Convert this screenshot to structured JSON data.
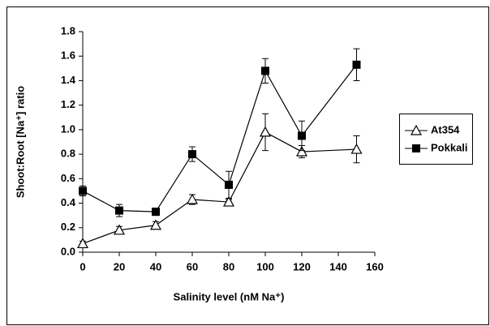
{
  "chart_data": {
    "type": "line",
    "xlabel": "Salinity level (nM Na⁺)",
    "ylabel": "Shoot:Root [Na⁺] ratio",
    "x": [
      0,
      20,
      40,
      60,
      80,
      100,
      120,
      150
    ],
    "series": [
      {
        "name": "At354",
        "color": "#000000",
        "marker": "triangle-open",
        "values": [
          0.07,
          0.18,
          0.22,
          0.43,
          0.41,
          0.98,
          0.82,
          0.84
        ],
        "errors": [
          0.02,
          0.03,
          0.03,
          0.04,
          0.02,
          0.15,
          0.05,
          0.11
        ]
      },
      {
        "name": "Pokkali",
        "color": "#000000",
        "marker": "square",
        "values": [
          0.5,
          0.34,
          0.33,
          0.8,
          0.55,
          1.48,
          0.95,
          1.53
        ],
        "errors": [
          0.04,
          0.05,
          0.03,
          0.06,
          0.11,
          0.1,
          0.12,
          0.13
        ]
      }
    ],
    "xlim": [
      0,
      160
    ],
    "xticks": [
      0,
      20,
      40,
      60,
      80,
      100,
      120,
      140,
      160
    ],
    "ylim": [
      0,
      1.8
    ],
    "yticks": [
      {
        "value": 0,
        "label": "0.0"
      },
      0.2,
      0.4,
      0.6,
      0.8,
      {
        "value": 1,
        "label": "1.0"
      },
      1.2,
      1.4,
      1.6,
      1.8
    ],
    "grid": false,
    "legend": "right"
  }
}
